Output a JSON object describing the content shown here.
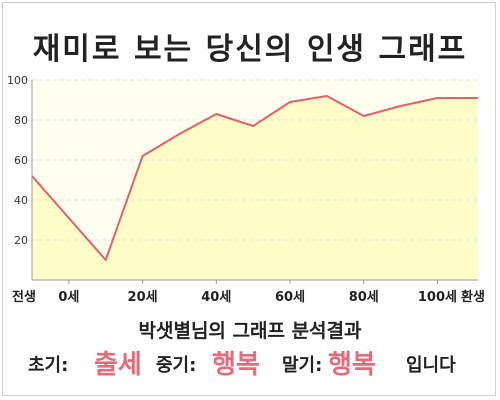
{
  "title": "재미로 보는 당신의 인생 그래프",
  "chart_data": {
    "type": "area",
    "x": [
      0,
      20,
      30,
      40,
      50,
      60,
      70,
      80,
      90,
      100,
      110,
      121
    ],
    "values": [
      52,
      10,
      62,
      73,
      83,
      77,
      89,
      92,
      82,
      87,
      91,
      91
    ],
    "xticks": [
      {
        "pos": 10,
        "label": "0세"
      },
      {
        "pos": 30,
        "label": "20세"
      },
      {
        "pos": 50,
        "label": "40세"
      },
      {
        "pos": 70,
        "label": "60세"
      },
      {
        "pos": 90,
        "label": "80세"
      },
      {
        "pos": 110,
        "label": "100세"
      }
    ],
    "x_start_label": "전생",
    "x_end_label": "환생",
    "yticks": [
      20,
      40,
      60,
      80,
      100
    ],
    "ylim": [
      0,
      100
    ],
    "grid": true,
    "colors": {
      "line": "#e0606e",
      "fill": "#fefdc8"
    }
  },
  "summary": {
    "title": "박샛별님의 그래프 분석결과",
    "early_label": "초기:",
    "early_value": "출세",
    "mid_label": "중기:",
    "mid_value": "행복",
    "late_label": "말기:",
    "late_value": "행복",
    "ending": "입니다"
  }
}
